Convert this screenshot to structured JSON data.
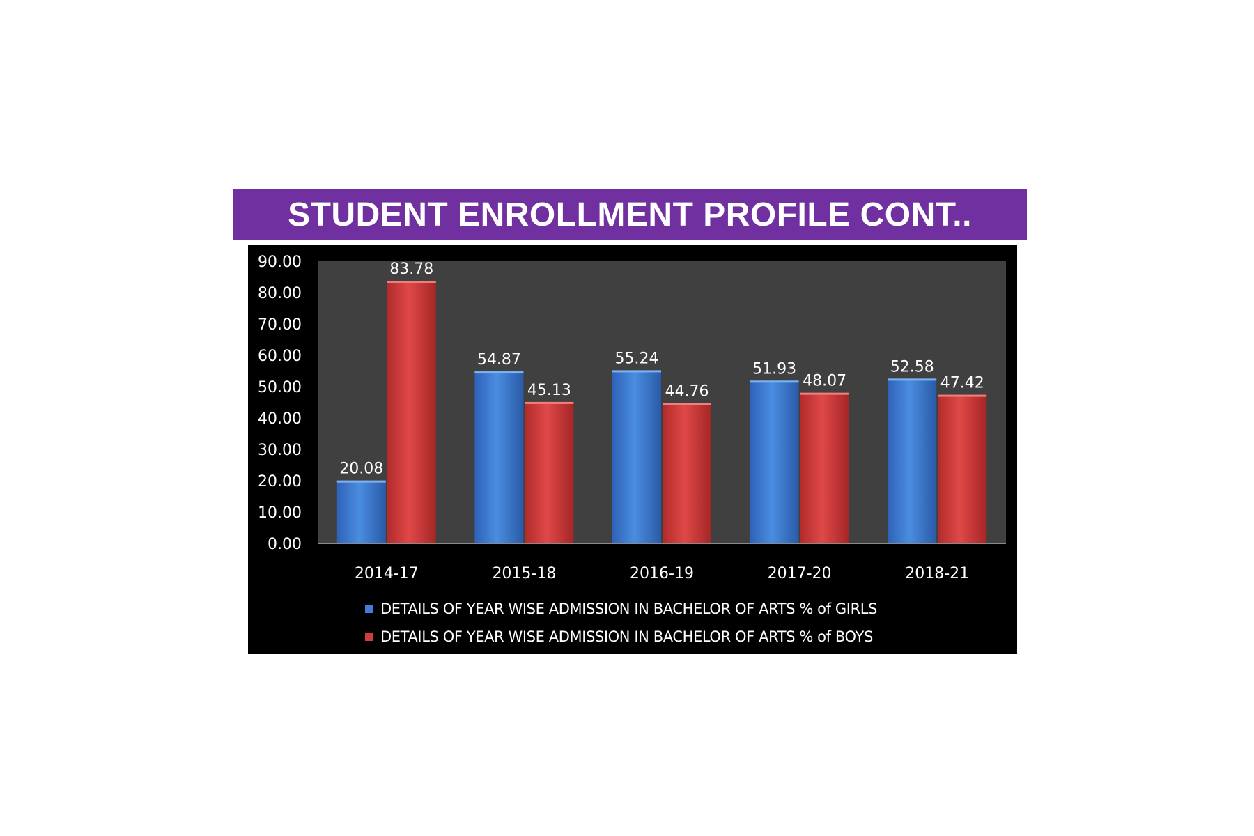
{
  "slide": {
    "title": "STUDENT ENROLLMENT PROFILE CONT.."
  },
  "colors": {
    "title_bg": "#7030a0",
    "chart_bg": "#000000",
    "plot_bg": "#404040",
    "girls": "#3f7fd6",
    "boys": "#d23c3c",
    "text": "#ffffff"
  },
  "chart_data": {
    "type": "bar",
    "title": "",
    "xlabel": "",
    "ylabel": "",
    "categories": [
      "2014-17",
      "2015-18",
      "2016-19",
      "2017-20",
      "2018-21"
    ],
    "series": [
      {
        "name": "DETAILS OF YEAR WISE ADMISSION IN BACHELOR OF ARTS % of GIRLS",
        "values": [
          20.08,
          54.87,
          55.24,
          51.93,
          52.58
        ],
        "labels": [
          "20.08",
          "54.87",
          "55.24",
          "51.93",
          "52.58"
        ]
      },
      {
        "name": "DETAILS OF YEAR WISE ADMISSION IN BACHELOR OF ARTS % of BOYS",
        "values": [
          83.78,
          45.13,
          44.76,
          48.07,
          47.42
        ],
        "labels": [
          "83.78",
          "45.13",
          "44.76",
          "48.07",
          "47.42"
        ]
      }
    ],
    "ylim": [
      0,
      90
    ],
    "yticks": [
      "0.00",
      "10.00",
      "20.00",
      "30.00",
      "40.00",
      "50.00",
      "60.00",
      "70.00",
      "80.00",
      "90.00"
    ],
    "grid": false,
    "legend_position": "bottom"
  }
}
